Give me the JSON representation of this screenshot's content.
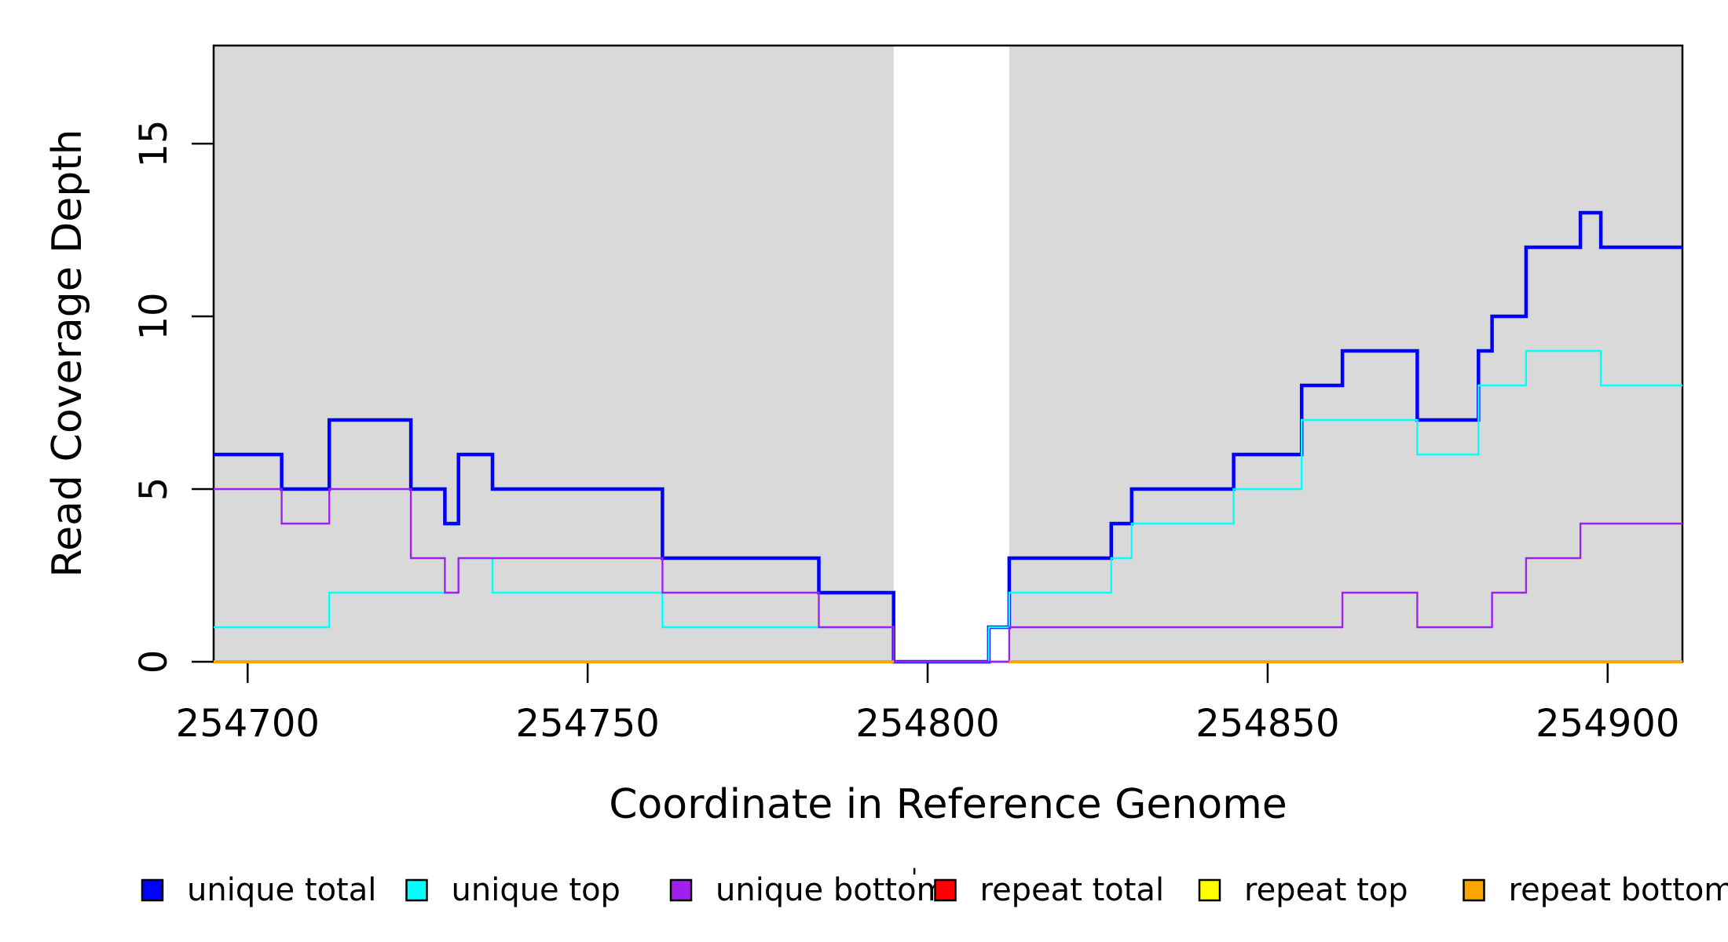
{
  "chart_data": {
    "type": "line",
    "subtype": "step-coverage-plot",
    "title": "",
    "xlabel": "Coordinate in Reference Genome",
    "ylabel": "Read Coverage Depth",
    "x_ticks": [
      254700,
      254750,
      254800,
      254850,
      254900
    ],
    "y_ticks": [
      0,
      5,
      10,
      15
    ],
    "xlim": [
      254695,
      254911
    ],
    "ylim": [
      0,
      17.8
    ],
    "grid": false,
    "plot_background_color": "#D9D9D9",
    "no_data_gap": {
      "from": 254795,
      "to": 254812
    },
    "legend_position": "bottom",
    "series": [
      {
        "id": "unique_total",
        "name": "unique total",
        "color": "#0000FF",
        "line_width": 4.5,
        "segments": [
          {
            "end": 254911,
            "points": [
              [
                254695,
                6
              ],
              [
                254705,
                5
              ],
              [
                254712,
                7
              ],
              [
                254724,
                5
              ],
              [
                254729,
                4
              ],
              [
                254731,
                6
              ],
              [
                254736,
                5
              ],
              [
                254761,
                3
              ],
              [
                254784,
                2
              ],
              [
                254795,
                0
              ],
              [
                254809,
                1
              ],
              [
                254812,
                3
              ],
              [
                254827,
                4
              ],
              [
                254830,
                5
              ],
              [
                254845,
                6
              ],
              [
                254855,
                8
              ],
              [
                254861,
                9
              ],
              [
                254872,
                7
              ],
              [
                254881,
                9
              ],
              [
                254883,
                10
              ],
              [
                254888,
                12
              ],
              [
                254896,
                13
              ],
              [
                254899,
                12
              ]
            ]
          }
        ]
      },
      {
        "id": "unique_top",
        "name": "unique top",
        "color": "#00FFFF",
        "line_width": 2.4,
        "segments": [
          {
            "end": 254911,
            "points": [
              [
                254695,
                1
              ],
              [
                254712,
                2
              ],
              [
                254731,
                3
              ],
              [
                254736,
                2
              ],
              [
                254761,
                1
              ],
              [
                254795,
                0
              ],
              [
                254809,
                1
              ],
              [
                254812,
                2
              ],
              [
                254827,
                3
              ],
              [
                254830,
                4
              ],
              [
                254845,
                5
              ],
              [
                254855,
                7
              ],
              [
                254872,
                6
              ],
              [
                254881,
                8
              ],
              [
                254888,
                9
              ],
              [
                254899,
                8
              ]
            ]
          }
        ]
      },
      {
        "id": "unique_bottom",
        "name": "unique bottom",
        "color": "#A020F0",
        "line_width": 2.4,
        "segments": [
          {
            "end": 254911,
            "points": [
              [
                254695,
                5
              ],
              [
                254705,
                4
              ],
              [
                254712,
                5
              ],
              [
                254724,
                3
              ],
              [
                254729,
                2
              ],
              [
                254731,
                3
              ],
              [
                254761,
                2
              ],
              [
                254784,
                1
              ],
              [
                254795,
                0
              ],
              [
                254812,
                1
              ],
              [
                254861,
                2
              ],
              [
                254872,
                1
              ],
              [
                254883,
                2
              ],
              [
                254888,
                3
              ],
              [
                254896,
                4
              ]
            ]
          }
        ]
      },
      {
        "id": "repeat_total",
        "name": "repeat total",
        "color": "#FF0000",
        "line_width": 2.4,
        "segments": [
          {
            "end": 254795,
            "points": [
              [
                254695,
                0
              ]
            ]
          },
          {
            "end": 254911,
            "points": [
              [
                254812,
                0
              ]
            ]
          }
        ]
      },
      {
        "id": "repeat_top",
        "name": "repeat top",
        "color": "#FFFF00",
        "line_width": 2.4,
        "segments": [
          {
            "end": 254795,
            "points": [
              [
                254695,
                0
              ]
            ]
          },
          {
            "end": 254911,
            "points": [
              [
                254812,
                0
              ]
            ]
          }
        ]
      },
      {
        "id": "repeat_bottom",
        "name": "repeat bottom",
        "color": "#FFA500",
        "line_width": 4.0,
        "segments": [
          {
            "end": 254795,
            "points": [
              [
                254695,
                0
              ]
            ]
          },
          {
            "end": 254911,
            "points": [
              [
                254812,
                0
              ]
            ]
          }
        ]
      }
    ],
    "legend": [
      {
        "label": "unique total",
        "color": "#0000FF"
      },
      {
        "label": "unique top",
        "color": "#00FFFF"
      },
      {
        "label": "unique bottom",
        "color": "#A020F0"
      },
      {
        "label": "repeat total",
        "color": "#FF0000"
      },
      {
        "label": "repeat top",
        "color": "#FFFF00"
      },
      {
        "label": "repeat bottom",
        "color": "#FFA500"
      }
    ],
    "stray_mark": "'"
  }
}
